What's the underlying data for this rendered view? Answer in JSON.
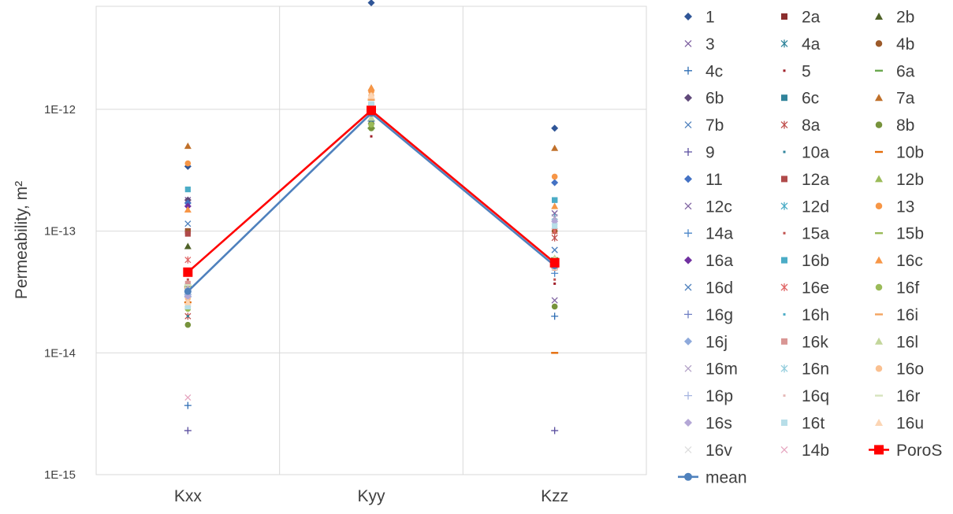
{
  "chart_data": {
    "type": "scatter",
    "ylabel": "Permeability, m²",
    "xlabel": "",
    "categories": [
      "Kxx",
      "Kyy",
      "Kzz"
    ],
    "y_scale": "log",
    "ylim": [
      1e-15,
      1e-11
    ],
    "y_ticks": [
      1e-15,
      1e-14,
      1e-13,
      1e-12
    ],
    "y_tick_labels": [
      "1E-15",
      "1E-14",
      "1E-13",
      "1E-12"
    ],
    "grid": true,
    "legend_position": "right",
    "series": [
      {
        "name": "1",
        "color": "#2f5597",
        "marker": "diamond",
        "values": [
          3.4e-13,
          7.5e-12,
          7e-13
        ]
      },
      {
        "name": "2a",
        "color": "#8b2e2e",
        "marker": "square",
        "values": [
          1e-13,
          9.5e-13,
          5e-14
        ]
      },
      {
        "name": "2b",
        "color": "#4f6228",
        "marker": "triangle",
        "values": [
          7.5e-14,
          8e-13,
          5.5e-14
        ]
      },
      {
        "name": "3",
        "color": "#7d5fa0",
        "marker": "x",
        "values": [
          1.8e-13,
          1e-12,
          1.4e-13
        ]
      },
      {
        "name": "4a",
        "color": "#31859c",
        "marker": "star",
        "values": [
          2.5e-14,
          1e-12,
          5e-14
        ]
      },
      {
        "name": "4b",
        "color": "#9c5a2a",
        "marker": "circle",
        "values": [
          1e-13,
          9e-13,
          1e-13
        ]
      },
      {
        "name": "4c",
        "color": "#2e6db4",
        "marker": "plus",
        "values": [
          3.7e-15,
          8e-13,
          2e-14
        ]
      },
      {
        "name": "5",
        "color": "#a0202a",
        "marker": "dash",
        "values": [
          3e-14,
          6e-13,
          3.7e-14
        ]
      },
      {
        "name": "6a",
        "color": "#6aa84f",
        "marker": "line",
        "values": [
          3.5e-14,
          7e-13,
          6e-14
        ]
      },
      {
        "name": "6b",
        "color": "#60497a",
        "marker": "diamond",
        "values": [
          1.8e-13,
          1e-12,
          5.2e-14
        ]
      },
      {
        "name": "6c",
        "color": "#31849b",
        "marker": "square",
        "values": [
          3e-14,
          1.1e-12,
          1.8e-13
        ]
      },
      {
        "name": "7a",
        "color": "#c0702a",
        "marker": "triangle",
        "values": [
          5e-13,
          1.5e-12,
          4.8e-13
        ]
      },
      {
        "name": "7b",
        "color": "#4f81bd",
        "marker": "x",
        "values": [
          1.15e-13,
          1.05e-12,
          7e-14
        ]
      },
      {
        "name": "8a",
        "color": "#c0504d",
        "marker": "star",
        "values": [
          2e-14,
          1e-12,
          8.8e-14
        ]
      },
      {
        "name": "8b",
        "color": "#77933c",
        "marker": "circle",
        "values": [
          1.7e-14,
          7e-13,
          2.4e-14
        ]
      },
      {
        "name": "9",
        "color": "#5b4fa0",
        "marker": "plus",
        "values": [
          2.3e-15,
          9.5e-13,
          2.3e-15
        ]
      },
      {
        "name": "10a",
        "color": "#31859c",
        "marker": "dash",
        "values": [
          2e-14,
          1.1e-12,
          5.2e-14
        ]
      },
      {
        "name": "10b",
        "color": "#e46c0a",
        "marker": "line",
        "values": [
          2.6e-14,
          1.2e-12,
          1e-14
        ]
      },
      {
        "name": "11",
        "color": "#4472c4",
        "marker": "diamond",
        "values": [
          1.7e-13,
          1e-12,
          2.5e-13
        ]
      },
      {
        "name": "12a",
        "color": "#b04a4a",
        "marker": "square",
        "values": [
          9.5e-14,
          9.5e-13,
          5e-14
        ]
      },
      {
        "name": "12b",
        "color": "#9bbb59",
        "marker": "triangle",
        "values": [
          4.5e-14,
          8.5e-13,
          6e-14
        ]
      },
      {
        "name": "12c",
        "color": "#8064a2",
        "marker": "x",
        "values": [
          3.2e-14,
          1e-12,
          2.7e-14
        ]
      },
      {
        "name": "12d",
        "color": "#4bacc6",
        "marker": "star",
        "values": [
          3e-14,
          1e-12,
          1.3e-13
        ]
      },
      {
        "name": "13",
        "color": "#f79646",
        "marker": "circle",
        "values": [
          3.6e-13,
          1.4e-12,
          2.8e-13
        ]
      },
      {
        "name": "14a",
        "color": "#4a86c8",
        "marker": "plus",
        "values": [
          2.9e-14,
          9e-13,
          4.5e-14
        ]
      },
      {
        "name": "15a",
        "color": "#c0504d",
        "marker": "dash",
        "values": [
          4e-14,
          1e-12,
          4e-14
        ]
      },
      {
        "name": "15b",
        "color": "#9bbb59",
        "marker": "line",
        "values": [
          4.3e-14,
          9.5e-13,
          5.5e-14
        ]
      },
      {
        "name": "16a",
        "color": "#7030a0",
        "marker": "diamond",
        "values": [
          1.6e-13,
          1e-12,
          5e-14
        ]
      },
      {
        "name": "16b",
        "color": "#4bacc6",
        "marker": "square",
        "values": [
          2.2e-13,
          1.1e-12,
          1.8e-13
        ]
      },
      {
        "name": "16c",
        "color": "#f79646",
        "marker": "triangle",
        "values": [
          1.5e-13,
          1.5e-12,
          1.6e-13
        ]
      },
      {
        "name": "16d",
        "color": "#4f81bd",
        "marker": "x",
        "values": [
          3e-14,
          1e-12,
          7e-14
        ]
      },
      {
        "name": "16e",
        "color": "#e06666",
        "marker": "star",
        "values": [
          5.8e-14,
          1e-12,
          1e-13
        ]
      },
      {
        "name": "16f",
        "color": "#9bbb59",
        "marker": "circle",
        "values": [
          2.3e-14,
          7.5e-13,
          5.8e-14
        ]
      },
      {
        "name": "16g",
        "color": "#6f7fc4",
        "marker": "plus",
        "values": [
          3e-14,
          1e-12,
          5e-14
        ]
      },
      {
        "name": "16h",
        "color": "#4bacc6",
        "marker": "dash",
        "values": [
          3.6e-14,
          1.1e-12,
          5.3e-14
        ]
      },
      {
        "name": "16i",
        "color": "#f4a460",
        "marker": "line",
        "values": [
          3.4e-14,
          1.2e-12,
          5e-14
        ]
      },
      {
        "name": "16j",
        "color": "#8ea9db",
        "marker": "diamond",
        "values": [
          3e-14,
          1e-12,
          5.5e-14
        ]
      },
      {
        "name": "16k",
        "color": "#d99694",
        "marker": "square",
        "values": [
          3.7e-14,
          1e-12,
          5e-14
        ]
      },
      {
        "name": "16l",
        "color": "#c3d69b",
        "marker": "triangle",
        "values": [
          4.6e-14,
          8.5e-13,
          6e-14
        ]
      },
      {
        "name": "16m",
        "color": "#b3a2c7",
        "marker": "x",
        "values": [
          3.5e-14,
          1e-12,
          1.3e-13
        ]
      },
      {
        "name": "16n",
        "color": "#93cddd",
        "marker": "star",
        "values": [
          3.2e-14,
          1.05e-12,
          1.2e-13
        ]
      },
      {
        "name": "16o",
        "color": "#fac090",
        "marker": "circle",
        "values": [
          2.8e-14,
          1.3e-12,
          5e-14
        ]
      },
      {
        "name": "16p",
        "color": "#a6b5e0",
        "marker": "plus",
        "values": [
          3e-14,
          9.5e-13,
          5.5e-14
        ]
      },
      {
        "name": "16q",
        "color": "#e6b8b7",
        "marker": "dash",
        "values": [
          3.2e-14,
          1e-12,
          5e-14
        ]
      },
      {
        "name": "16r",
        "color": "#d7e4bd",
        "marker": "line",
        "values": [
          3.6e-14,
          9e-13,
          5.3e-14
        ]
      },
      {
        "name": "16s",
        "color": "#b4a7d6",
        "marker": "diamond",
        "values": [
          2.9e-14,
          9.5e-13,
          1.2e-13
        ]
      },
      {
        "name": "16t",
        "color": "#b7dee8",
        "marker": "square",
        "values": [
          2.4e-14,
          1.1e-12,
          1.1e-13
        ]
      },
      {
        "name": "16u",
        "color": "#fcd5b4",
        "marker": "triangle",
        "values": [
          2.6e-14,
          1.3e-12,
          5.8e-14
        ]
      },
      {
        "name": "16v",
        "color": "#dddddd",
        "marker": "x",
        "values": [
          3.3e-14,
          9e-13,
          5e-14
        ]
      },
      {
        "name": "14b",
        "color": "#e6a6c0",
        "marker": "x",
        "values": [
          4.3e-15,
          9.5e-13,
          5.2e-14
        ]
      },
      {
        "name": "PoroS",
        "color": "#ff0000",
        "marker": "square-line",
        "values": [
          4.6e-14,
          9.8e-13,
          5.5e-14
        ]
      },
      {
        "name": "mean",
        "color": "#4f81bd",
        "marker": "circle-line",
        "values": [
          3.2e-14,
          9.3e-13,
          5.2e-14
        ]
      }
    ]
  }
}
